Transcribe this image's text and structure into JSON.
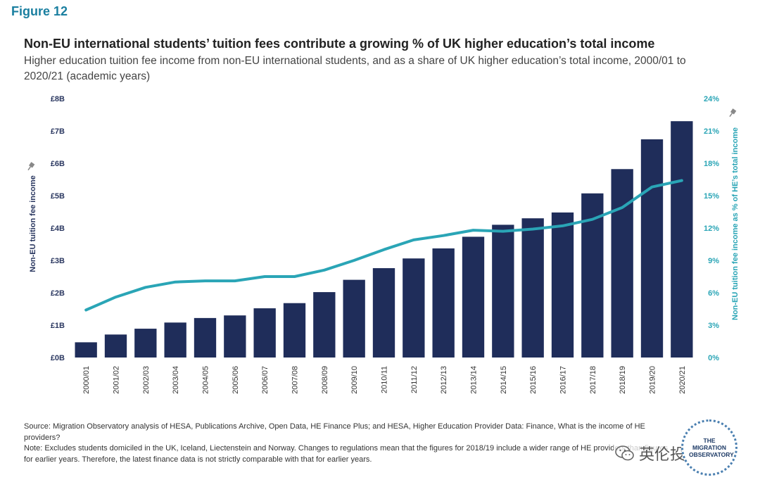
{
  "figure_label": "Figure 12",
  "chart_data": {
    "type": "bar+line",
    "title": "Non-EU international students’ tuition fees contribute a growing % of UK higher education’s total income",
    "subtitle": "Higher education tuition fee income from non-EU international students, and as a share of UK higher education’s total income, 2000/01 to 2020/21 (academic years)",
    "categories": [
      "2000/01",
      "2001/02",
      "2002/03",
      "2003/04",
      "2004/05",
      "2005/06",
      "2006/07",
      "2007/08",
      "2008/09",
      "2009/10",
      "2010/11",
      "2011/12",
      "2012/13",
      "2013/14",
      "2014/15",
      "2015/16",
      "2016/17",
      "2017/18",
      "2018/19",
      "2019/20",
      "2020/21"
    ],
    "series": [
      {
        "name": "Non-EU tuition fee income",
        "type": "bar",
        "axis": "left",
        "color": "#1f2d5a",
        "values": [
          0.47,
          0.71,
          0.89,
          1.08,
          1.22,
          1.3,
          1.52,
          1.68,
          2.02,
          2.4,
          2.76,
          3.06,
          3.37,
          3.73,
          4.1,
          4.3,
          4.48,
          5.07,
          5.82,
          6.74,
          7.3
        ]
      },
      {
        "name": "Non-EU tuition fee income as % of HE’s total income",
        "type": "line",
        "axis": "right",
        "color": "#2aa5b6",
        "values": [
          4.4,
          5.6,
          6.5,
          7.0,
          7.1,
          7.1,
          7.5,
          7.5,
          8.1,
          9.0,
          10.0,
          10.9,
          11.3,
          11.8,
          11.7,
          11.9,
          12.2,
          12.8,
          13.9,
          15.8,
          16.4
        ]
      }
    ],
    "y_left": {
      "label": "Non-EU tuition fee income",
      "min": 0,
      "max": 8,
      "ticks": [
        0,
        1,
        2,
        3,
        4,
        5,
        6,
        7,
        8
      ],
      "tick_labels": [
        "£0B",
        "£1B",
        "£2B",
        "£3B",
        "£4B",
        "£5B",
        "£6B",
        "£7B",
        "£8B"
      ]
    },
    "y_right": {
      "label": "Non-EU tuition fee income as % of HE’s total income",
      "min": 0,
      "max": 24,
      "ticks": [
        0,
        3,
        6,
        9,
        12,
        15,
        18,
        21,
        24
      ],
      "tick_labels": [
        "0%",
        "3%",
        "6%",
        "9%",
        "12%",
        "15%",
        "18%",
        "21%",
        "24%"
      ]
    },
    "grid": false,
    "legend": "none"
  },
  "notes": {
    "source": "Source: Migration Observatory analysis of HESA, Publications Archive, Open Data, HE Finance Plus; and HESA, Higher Education Provider Data: Finance, What is the income of HE providers?",
    "note": "Note: Excludes students domiciled in the UK, Iceland, Liectenstein and Norway. Changes to regulations mean that the figures for 2018/19 include a wider range of HE providers than figures for earlier years. Therefore, the latest finance data is not strictly comparable with that for earlier years."
  },
  "logo_text": "THE MIGRATION OBSERVATORY",
  "watermark_text": "英伦投资客",
  "icons": {
    "pin": "pin-icon",
    "wechat": "wechat-icon"
  }
}
